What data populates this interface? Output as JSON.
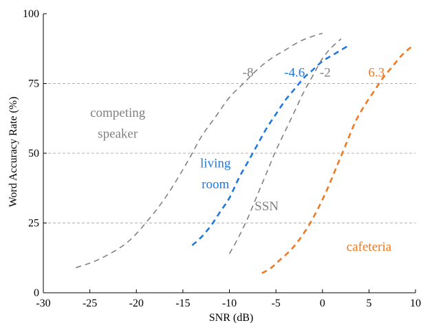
{
  "chart_data": {
    "type": "line",
    "xlabel": "SNR (dB)",
    "ylabel": "Word Accuracy Rate (%)",
    "xlim": [
      -30,
      10
    ],
    "ylim": [
      0,
      100
    ],
    "xticks": [
      -30,
      -25,
      -20,
      -15,
      -10,
      -5,
      0,
      5,
      10
    ],
    "yticks": [
      0,
      25,
      50,
      75,
      100
    ],
    "ygrid": [
      25,
      50,
      75
    ],
    "series": [
      {
        "name": "competing speaker",
        "color": "#808080",
        "x": [
          -26.5,
          -24,
          -21,
          -18.5,
          -16.5,
          -14.5,
          -13,
          -11.5,
          -10,
          -8.5,
          -7,
          -5.5,
          -4,
          -2.5,
          -1,
          0
        ],
        "y": [
          9,
          12,
          18,
          27,
          36,
          47,
          56,
          63,
          70,
          75,
          80,
          84,
          87,
          90,
          92,
          93
        ]
      },
      {
        "name": "living room",
        "color": "#1e78e0",
        "x": [
          -14,
          -13,
          -12,
          -11,
          -10,
          -9,
          -8,
          -7,
          -6,
          -5,
          -4,
          -3,
          -2,
          -1,
          0,
          1,
          2,
          3
        ],
        "y": [
          17,
          20,
          24,
          29,
          34,
          41,
          47,
          53,
          59,
          64,
          69,
          73,
          77,
          80,
          83,
          85,
          87,
          89
        ]
      },
      {
        "name": "SSN",
        "color": "#808080",
        "x": [
          -10,
          -9,
          -8,
          -7,
          -6,
          -5,
          -4,
          -3,
          -2,
          -1,
          0,
          1,
          2
        ],
        "y": [
          14,
          20,
          27,
          35,
          43,
          51,
          58,
          65,
          72,
          78,
          84,
          88,
          91
        ]
      },
      {
        "name": "cafeteria",
        "color": "#f07820",
        "x": [
          -6.5,
          -5.5,
          -4.5,
          -3.5,
          -2.5,
          -1.5,
          -0.5,
          0.5,
          1.5,
          2.5,
          3.5,
          4.5,
          5.5,
          6.5,
          7.5,
          8.5,
          9.5
        ],
        "y": [
          7,
          9,
          12,
          15,
          19,
          24,
          30,
          37,
          45,
          53,
          61,
          67,
          72,
          77,
          81,
          85,
          88
        ]
      }
    ],
    "annotations": [
      {
        "text": "competing",
        "x": -22,
        "y": 63,
        "color": "#808080"
      },
      {
        "text": "speaker",
        "x": -22,
        "y": 55.5,
        "color": "#808080"
      },
      {
        "text": "living",
        "x": -11.5,
        "y": 45,
        "color": "#1e78e0"
      },
      {
        "text": "room",
        "x": -11.5,
        "y": 37.5,
        "color": "#1e78e0"
      },
      {
        "text": "SSN",
        "x": -6,
        "y": 29.5,
        "color": "#808080"
      },
      {
        "text": "cafeteria",
        "x": 5,
        "y": 15,
        "color": "#f07820"
      },
      {
        "text": "-8",
        "x": -8,
        "y": 77.5,
        "color": "#808080"
      },
      {
        "text": "-4.6",
        "x": -3,
        "y": 77.5,
        "color": "#1e78e0"
      },
      {
        "text": "-2",
        "x": 0.3,
        "y": 77.5,
        "color": "#808080"
      },
      {
        "text": "6.3",
        "x": 5.8,
        "y": 77.5,
        "color": "#f07820"
      }
    ]
  }
}
